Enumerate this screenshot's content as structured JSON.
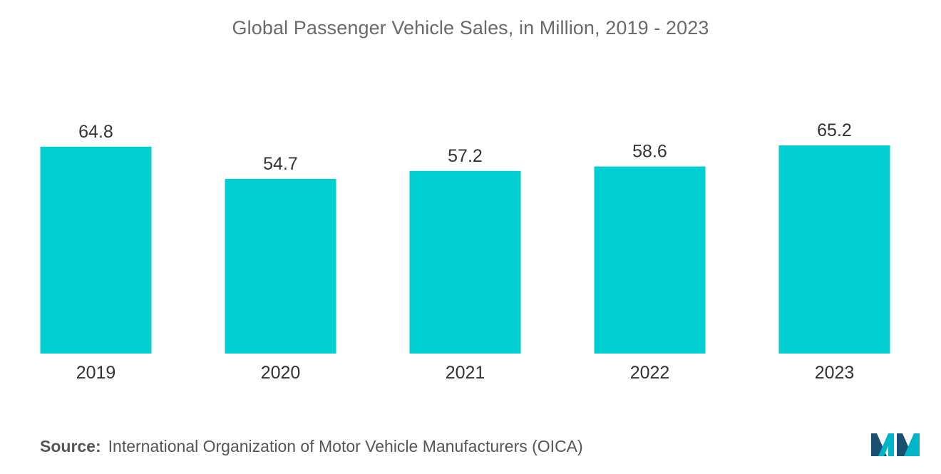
{
  "chart_data": {
    "type": "bar",
    "title": "Global Passenger Vehicle Sales, in Million, 2019 - 2023",
    "categories": [
      "2019",
      "2020",
      "2021",
      "2022",
      "2023"
    ],
    "values": [
      64.8,
      54.7,
      57.2,
      58.6,
      65.2
    ],
    "value_labels": [
      "64.8",
      "54.7",
      "57.2",
      "58.6",
      "65.2"
    ],
    "xlabel": "",
    "ylabel": "",
    "ylim": [
      0,
      65.2
    ],
    "grid": false,
    "legend": "none",
    "bar_color": "#00CED1"
  },
  "source": {
    "prefix": "Source:",
    "text": "International Organization of Motor Vehicle Manufacturers (OICA)"
  },
  "logo": {
    "icon": "mordor-intelligence-logo-icon",
    "colors": [
      "#1B4F72",
      "#00B5C8"
    ]
  }
}
